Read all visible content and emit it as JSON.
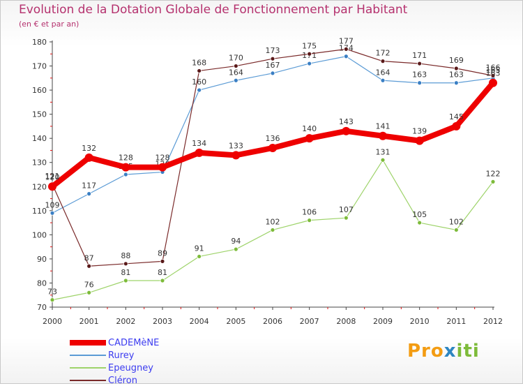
{
  "title": "Evolution de la Dotation Globale de Fonctionnement par Habitant",
  "subtitle": "(en € et par an)",
  "logo": {
    "part1": "Pro",
    "part2": "x",
    "part3": "iti"
  },
  "colors": {
    "title": "#b5316e",
    "axis": "#444444",
    "tick_red": "#e01010",
    "legend_text": "#3c3cf0"
  },
  "chart_data": {
    "type": "line",
    "title": "Evolution de la Dotation Globale de Fonctionnement par Habitant",
    "subtitle": "(en € et par an)",
    "xlabel": "",
    "ylabel": "",
    "ylim": [
      70,
      180
    ],
    "yticks": [
      70,
      80,
      90,
      100,
      110,
      120,
      130,
      140,
      150,
      160,
      170,
      180
    ],
    "categories": [
      "2000",
      "2001",
      "2002",
      "2003",
      "2004",
      "2005",
      "2006",
      "2007",
      "2008",
      "2009",
      "2010",
      "2011",
      "2012"
    ],
    "series": [
      {
        "name": "Rurey",
        "color": "#5b9bd5",
        "marker": "#3a7fc4",
        "values": [
          109,
          117,
          125,
          126,
          160,
          164,
          167,
          171,
          174,
          164,
          163,
          163,
          165
        ]
      },
      {
        "name": "Epeugney",
        "color": "#9ed36a",
        "marker": "#7dbb3a",
        "values": [
          73,
          76,
          81,
          81,
          91,
          94,
          102,
          106,
          107,
          131,
          105,
          102,
          122
        ]
      },
      {
        "name": "Cléron",
        "color": "#7a2a2a",
        "marker": "#5a1a1a",
        "values": [
          121,
          87,
          88,
          89,
          168,
          170,
          173,
          175,
          177,
          172,
          171,
          169,
          166
        ]
      },
      {
        "name": "CADEMèNE",
        "color": "#ee0000",
        "marker": "#ee0000",
        "values": [
          120,
          132,
          128,
          128,
          134,
          133,
          136,
          140,
          143,
          141,
          139,
          145,
          163
        ]
      }
    ],
    "legend_order": [
      "CADEMèNE",
      "Rurey",
      "Epeugney",
      "Cléron"
    ],
    "legend_position": "bottom-left",
    "grid": false
  }
}
